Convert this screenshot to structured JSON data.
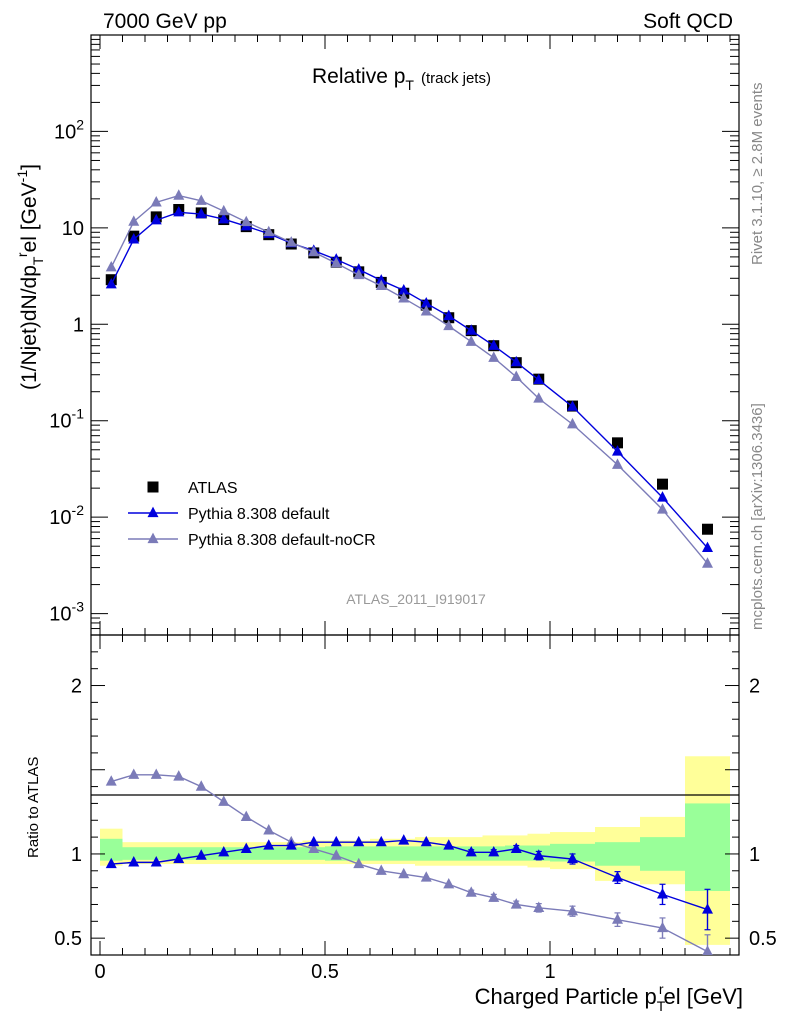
{
  "header": {
    "left": "7000 GeV pp",
    "right": "Soft QCD",
    "side_top": "Rivet 3.1.10, ≥ 2.8M events",
    "side_bottom": "mcplots.cern.ch [arXiv:1306.3436]"
  },
  "chart_data": [
    {
      "type": "line",
      "panel": "main",
      "title_main": "Relative p",
      "title_sub": "T",
      "title_suffix": "(track jets)",
      "ylabel": "(1/Njet)dN/dp",
      "ylabel_sub": "T",
      "ylabel_sup": "r",
      "ylabel_tail": "el [GeV",
      "ylabel_exp": "-1",
      "ylabel_close": "]",
      "watermark": "ATLAS_2011_I919017",
      "yscale": "log",
      "xlim": [
        -0.02,
        1.42
      ],
      "ylim": [
        0.0006,
        1000
      ],
      "yticks": [
        {
          "base": "10",
          "exp": "-3",
          "value": 0.001
        },
        {
          "base": "10",
          "exp": "-2",
          "value": 0.01
        },
        {
          "base": "10",
          "exp": "-1",
          "value": 0.1
        },
        {
          "base": "1",
          "exp": "",
          "value": 1
        },
        {
          "base": "10",
          "exp": "",
          "value": 10
        },
        {
          "base": "10",
          "exp": "2",
          "value": 100
        }
      ],
      "legend_position": "bottom-left",
      "x": [
        0.025,
        0.075,
        0.125,
        0.175,
        0.225,
        0.275,
        0.325,
        0.375,
        0.425,
        0.475,
        0.525,
        0.575,
        0.625,
        0.675,
        0.725,
        0.775,
        0.825,
        0.875,
        0.925,
        0.975,
        1.05,
        1.15,
        1.25,
        1.35
      ],
      "series": [
        {
          "name": "ATLAS",
          "color": "#000000",
          "marker": "square",
          "values": [
            2.9,
            8.2,
            13,
            15.5,
            14.3,
            12.2,
            10.3,
            8.5,
            6.8,
            5.5,
            4.4,
            3.5,
            2.72,
            2.1,
            1.58,
            1.17,
            0.86,
            0.6,
            0.4,
            0.27,
            0.142,
            0.059,
            0.022,
            0.0075
          ]
        },
        {
          "name": "Pythia 8.308 default",
          "color": "#0000dd",
          "marker": "triangle",
          "values": [
            2.6,
            7.6,
            12.0,
            14.5,
            13.9,
            12.3,
            10.4,
            8.7,
            6.95,
            5.8,
            4.7,
            3.7,
            2.85,
            2.25,
            1.65,
            1.22,
            0.86,
            0.6,
            0.405,
            0.265,
            0.14,
            0.048,
            0.016,
            0.0048
          ]
        },
        {
          "name": "Pythia 8.308 default-noCR",
          "color": "#7b7bb8",
          "marker": "triangle",
          "values": [
            3.9,
            11.6,
            18.4,
            21.6,
            19.1,
            14.9,
            11.5,
            9.05,
            7.05,
            5.6,
            4.3,
            3.25,
            2.5,
            1.86,
            1.36,
            0.96,
            0.66,
            0.45,
            0.285,
            0.17,
            0.092,
            0.035,
            0.012,
            0.0033
          ]
        }
      ]
    },
    {
      "type": "line",
      "panel": "ratio",
      "ylabel": "Ratio to ATLAS",
      "xlabel": "Charged Particle p",
      "xlabel_sub": "T",
      "xlabel_sup": "r",
      "xlabel_tail": "el [GeV]",
      "xlim": [
        -0.02,
        1.42
      ],
      "ylim": [
        0.4,
        2.3
      ],
      "xticks": [
        "0",
        "0.5",
        "1"
      ],
      "xtick_values": [
        0,
        0.5,
        1
      ],
      "yticks": [
        "0.5",
        "1",
        "2"
      ],
      "ytick_values": [
        0.5,
        1,
        2
      ],
      "x": [
        0.025,
        0.075,
        0.125,
        0.175,
        0.225,
        0.275,
        0.325,
        0.375,
        0.425,
        0.475,
        0.525,
        0.575,
        0.625,
        0.675,
        0.725,
        0.775,
        0.825,
        0.875,
        0.925,
        0.975,
        1.05,
        1.15,
        1.25,
        1.35
      ],
      "bin_edges": [
        0,
        0.05,
        0.1,
        0.15,
        0.2,
        0.25,
        0.3,
        0.35,
        0.4,
        0.45,
        0.5,
        0.55,
        0.6,
        0.65,
        0.7,
        0.75,
        0.8,
        0.85,
        0.9,
        0.95,
        1.0,
        1.1,
        1.2,
        1.3,
        1.4
      ],
      "band_green": [
        [
          0.96,
          1.09
        ],
        [
          0.965,
          1.04
        ],
        [
          0.965,
          1.04
        ],
        [
          0.965,
          1.04
        ],
        [
          0.965,
          1.04
        ],
        [
          0.965,
          1.04
        ],
        [
          0.965,
          1.04
        ],
        [
          0.965,
          1.04
        ],
        [
          0.965,
          1.04
        ],
        [
          0.965,
          1.04
        ],
        [
          0.96,
          1.045
        ],
        [
          0.96,
          1.045
        ],
        [
          0.96,
          1.045
        ],
        [
          0.96,
          1.045
        ],
        [
          0.96,
          1.045
        ],
        [
          0.96,
          1.045
        ],
        [
          0.96,
          1.045
        ],
        [
          0.96,
          1.045
        ],
        [
          0.96,
          1.05
        ],
        [
          0.96,
          1.05
        ],
        [
          0.955,
          1.06
        ],
        [
          0.93,
          1.07
        ],
        [
          0.9,
          1.1
        ],
        [
          0.78,
          1.3
        ]
      ],
      "band_yellow": [
        [
          0.93,
          1.15
        ],
        [
          0.94,
          1.07
        ],
        [
          0.94,
          1.07
        ],
        [
          0.94,
          1.07
        ],
        [
          0.94,
          1.07
        ],
        [
          0.94,
          1.07
        ],
        [
          0.94,
          1.07
        ],
        [
          0.94,
          1.07
        ],
        [
          0.94,
          1.07
        ],
        [
          0.94,
          1.08
        ],
        [
          0.94,
          1.08
        ],
        [
          0.94,
          1.08
        ],
        [
          0.94,
          1.09
        ],
        [
          0.94,
          1.09
        ],
        [
          0.93,
          1.1
        ],
        [
          0.93,
          1.1
        ],
        [
          0.93,
          1.1
        ],
        [
          0.93,
          1.11
        ],
        [
          0.93,
          1.11
        ],
        [
          0.92,
          1.12
        ],
        [
          0.91,
          1.13
        ],
        [
          0.84,
          1.16
        ],
        [
          0.82,
          1.22
        ],
        [
          0.46,
          1.58
        ]
      ],
      "series": [
        {
          "name": "Pythia 8.308 default",
          "color": "#0000dd",
          "values": [
            0.94,
            0.95,
            0.95,
            0.97,
            0.99,
            1.01,
            1.03,
            1.05,
            1.05,
            1.07,
            1.07,
            1.07,
            1.07,
            1.08,
            1.07,
            1.05,
            1.01,
            1.01,
            1.03,
            0.99,
            0.97,
            0.86,
            0.76,
            0.67
          ],
          "errors": [
            0.01,
            0.01,
            0.01,
            0.01,
            0.01,
            0.01,
            0.01,
            0.01,
            0.01,
            0.01,
            0.01,
            0.01,
            0.01,
            0.01,
            0.01,
            0.01,
            0.015,
            0.015,
            0.02,
            0.025,
            0.03,
            0.035,
            0.06,
            0.12
          ]
        },
        {
          "name": "Pythia 8.308 default-noCR",
          "color": "#7b7bb8",
          "values": [
            1.43,
            1.47,
            1.47,
            1.46,
            1.4,
            1.31,
            1.22,
            1.14,
            1.07,
            1.03,
            0.99,
            0.94,
            0.9,
            0.88,
            0.86,
            0.82,
            0.77,
            0.74,
            0.7,
            0.68,
            0.66,
            0.61,
            0.56,
            0.42
          ],
          "errors": [
            0.01,
            0.01,
            0.01,
            0.01,
            0.01,
            0.01,
            0.01,
            0.01,
            0.01,
            0.01,
            0.01,
            0.01,
            0.01,
            0.01,
            0.01,
            0.01,
            0.015,
            0.02,
            0.02,
            0.025,
            0.03,
            0.04,
            0.06,
            0.1
          ]
        }
      ]
    }
  ]
}
